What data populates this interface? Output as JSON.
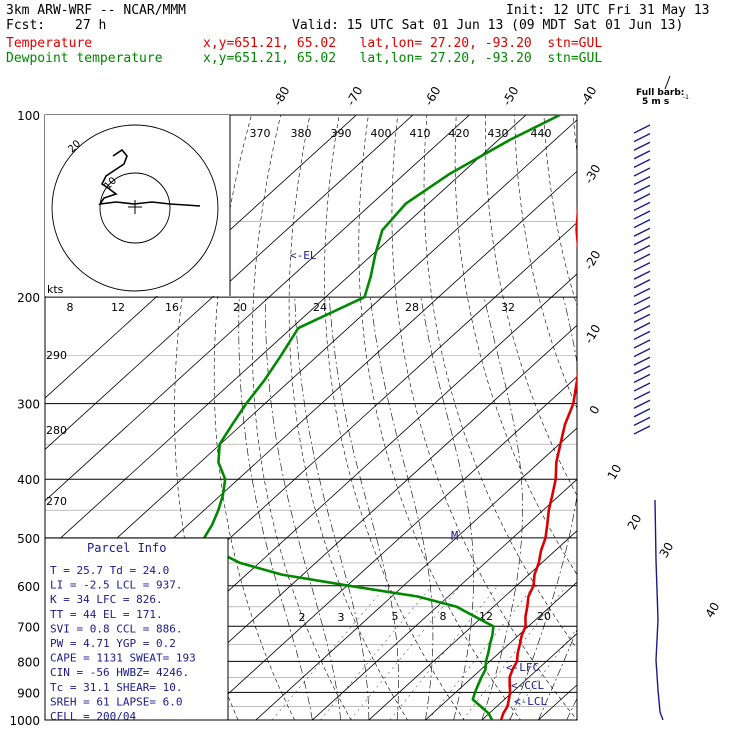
{
  "header": {
    "title": "3km ARW-WRF -- NCAR/MMM",
    "init": "Init: 12 UTC Fri 31 May 13",
    "fcst_label": "Fcst:",
    "fcst_value": "27 h",
    "valid": "Valid: 15 UTC Sat 01 Jun 13 (09 MDT Sat 01 Jun 13)",
    "temp_name": "Temperature",
    "dew_name": "Dewpoint temperature",
    "temp_loc": "x,y=651.21, 65.02   lat,lon= 27.20, -93.20  stn=GUL",
    "dew_loc": "x,y=651.21, 65.02   lat,lon= 27.20, -93.20  stn=GUL"
  },
  "colors": {
    "temperature": "#dd0000",
    "dewpoint": "#008800",
    "wind": "#1a1a8c",
    "text_red": "#dd0000",
    "text_green": "#008800"
  },
  "barb_key": {
    "line1": "Full barb:",
    "line2": "5 m s",
    "exp": "-1"
  },
  "pressure_labels": [
    "100",
    "200",
    "300",
    "400",
    "500",
    "600",
    "700",
    "800",
    "900",
    "1000"
  ],
  "temp_top_labels": [
    "-80",
    "-70",
    "-60",
    "-50",
    "-40"
  ],
  "temp_right_labels": [
    "-30",
    "-20",
    "-10",
    "0",
    "10",
    "20",
    "30",
    "40"
  ],
  "theta_labels": [
    "370",
    "380",
    "390",
    "400",
    "410",
    "420",
    "430",
    "440"
  ],
  "mixing_labels": [
    "2",
    "3",
    "5",
    "8",
    "12",
    "20"
  ],
  "theta_side_labels": [
    "290",
    "280",
    "270"
  ],
  "hodograph": {
    "unit_label": "kts",
    "ring_labels": [
      "20",
      "10"
    ],
    "speed_labels": [
      "8",
      "12",
      "16",
      "20",
      "24",
      "28",
      "32"
    ]
  },
  "el_marker": "<-EL",
  "parcel_info": {
    "title": "Parcel Info",
    "rows": [
      "T   =    25.7  Td =  24.0",
      "LI  =    -2.5  LCL =  937.",
      "K   =      34  LFC =  826.",
      "TT  =      44  EL  =  171.",
      "SVI =     0.8  CCL =  886.",
      "PW  =    4.71  YGP =   0.2",
      "CAPE =   1131  SWEAT=  193",
      "CIN  =    -56  HWBZ= 4246.",
      "Tc  =    31.1  SHEAR=  10.",
      "SREH =     61  LAPSE=  6.0",
      "CELL = 200/04"
    ]
  },
  "level_markers": [
    "<-LFC",
    "<-CCL",
    "<-LCL"
  ],
  "chart_data": {
    "type": "line",
    "title": "",
    "xlabel": "",
    "ylabel": "",
    "ylim": [
      1000,
      100
    ],
    "y_scale": "log",
    "series": [
      {
        "name": "Temperature",
        "pressure": [
          1000,
          975,
          950,
          925,
          900,
          875,
          850,
          825,
          800,
          775,
          750,
          725,
          700,
          675,
          650,
          625,
          600,
          575,
          550,
          525,
          500,
          475,
          450,
          425,
          400,
          375,
          350,
          325,
          300,
          275,
          250,
          225,
          200,
          185,
          170,
          155,
          140,
          125,
          110,
          100
        ],
        "temp": [
          23.4,
          22.5,
          21.9,
          20.8,
          19.6,
          18.1,
          16.6,
          15.6,
          14.8,
          13.3,
          12.0,
          10.6,
          9.5,
          7.6,
          6.0,
          4.2,
          3.0,
          1.0,
          -0.5,
          -2.5,
          -4.2,
          -6.5,
          -9.0,
          -11.3,
          -13.8,
          -17.0,
          -19.8,
          -22.8,
          -25.4,
          -29.2,
          -33.5,
          -38.3,
          -44.2,
          -49.2,
          -53.5,
          -58.6,
          -63.5,
          -67.0,
          -70.0,
          -71.2
        ]
      },
      {
        "name": "Dewpoint temperature",
        "pressure": [
          1000,
          975,
          950,
          925,
          900,
          875,
          850,
          825,
          800,
          775,
          750,
          725,
          700,
          675,
          650,
          625,
          600,
          575,
          550,
          525,
          500,
          475,
          450,
          425,
          400,
          375,
          350,
          325,
          300,
          275,
          250,
          225,
          200,
          185,
          170,
          155,
          140,
          125,
          110,
          100
        ],
        "temp": [
          21.8,
          19.9,
          17.2,
          14.4,
          13.4,
          12.5,
          11.6,
          10.8,
          9.3,
          8.1,
          6.7,
          5.4,
          3.8,
          -1.3,
          -6.5,
          -15.4,
          -29.6,
          -43.7,
          -53.4,
          -60.1,
          -64.6,
          -65.8,
          -67.5,
          -69.6,
          -72.3,
          -76.8,
          -80.1,
          -81.7,
          -83.3,
          -84.6,
          -86.5,
          -88.8,
          -83.1,
          -86.0,
          -89.5,
          -93.0,
          -94.0,
          -92.0,
          -88.0,
          -84.0
        ]
      }
    ]
  }
}
